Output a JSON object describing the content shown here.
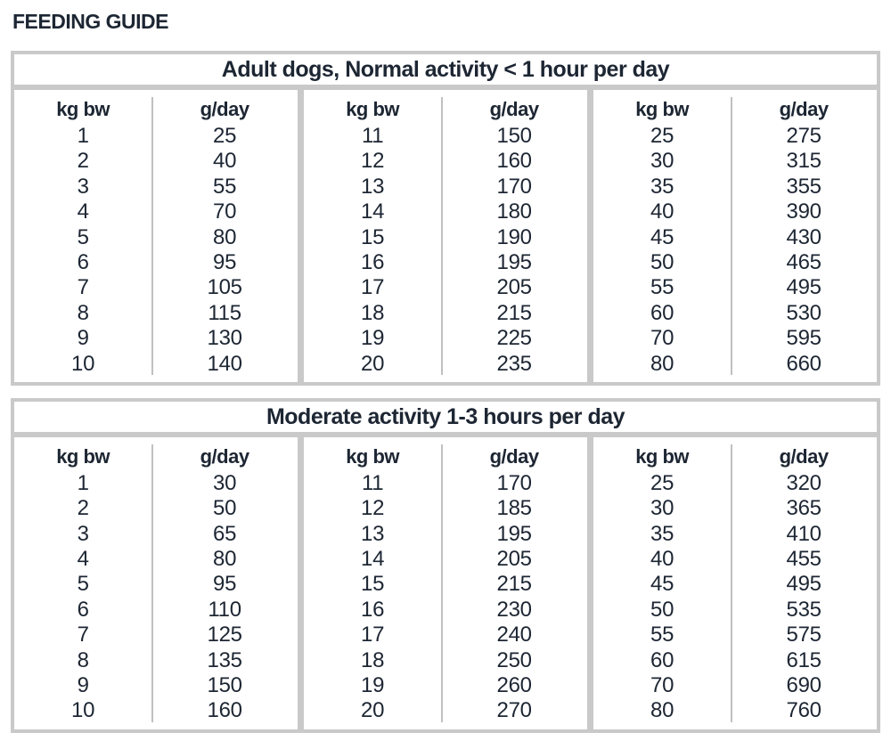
{
  "page_title": "FEEDING GUIDE",
  "colors": {
    "background": "#ffffff",
    "border_gray": "#c9c9c9",
    "divider_gray": "#c0c0c0",
    "text_dark": "#1d2633"
  },
  "tables": [
    {
      "title": "Adult dogs, Normal activity < 1 hour per day",
      "col_headers": {
        "weight": "kg bw",
        "amount": "g/day"
      },
      "blocks": [
        {
          "rows": [
            [
              "1",
              "25"
            ],
            [
              "2",
              "40"
            ],
            [
              "3",
              "55"
            ],
            [
              "4",
              "70"
            ],
            [
              "5",
              "80"
            ],
            [
              "6",
              "95"
            ],
            [
              "7",
              "105"
            ],
            [
              "8",
              "115"
            ],
            [
              "9",
              "130"
            ],
            [
              "10",
              "140"
            ]
          ]
        },
        {
          "rows": [
            [
              "11",
              "150"
            ],
            [
              "12",
              "160"
            ],
            [
              "13",
              "170"
            ],
            [
              "14",
              "180"
            ],
            [
              "15",
              "190"
            ],
            [
              "16",
              "195"
            ],
            [
              "17",
              "205"
            ],
            [
              "18",
              "215"
            ],
            [
              "19",
              "225"
            ],
            [
              "20",
              "235"
            ]
          ]
        },
        {
          "rows": [
            [
              "25",
              "275"
            ],
            [
              "30",
              "315"
            ],
            [
              "35",
              "355"
            ],
            [
              "40",
              "390"
            ],
            [
              "45",
              "430"
            ],
            [
              "50",
              "465"
            ],
            [
              "55",
              "495"
            ],
            [
              "60",
              "530"
            ],
            [
              "70",
              "595"
            ],
            [
              "80",
              "660"
            ]
          ]
        }
      ]
    },
    {
      "title": "Moderate activity 1-3 hours per day",
      "col_headers": {
        "weight": "kg bw",
        "amount": "g/day"
      },
      "blocks": [
        {
          "rows": [
            [
              "1",
              "30"
            ],
            [
              "2",
              "50"
            ],
            [
              "3",
              "65"
            ],
            [
              "4",
              "80"
            ],
            [
              "5",
              "95"
            ],
            [
              "6",
              "110"
            ],
            [
              "7",
              "125"
            ],
            [
              "8",
              "135"
            ],
            [
              "9",
              "150"
            ],
            [
              "10",
              "160"
            ]
          ]
        },
        {
          "rows": [
            [
              "11",
              "170"
            ],
            [
              "12",
              "185"
            ],
            [
              "13",
              "195"
            ],
            [
              "14",
              "205"
            ],
            [
              "15",
              "215"
            ],
            [
              "16",
              "230"
            ],
            [
              "17",
              "240"
            ],
            [
              "18",
              "250"
            ],
            [
              "19",
              "260"
            ],
            [
              "20",
              "270"
            ]
          ]
        },
        {
          "rows": [
            [
              "25",
              "320"
            ],
            [
              "30",
              "365"
            ],
            [
              "35",
              "410"
            ],
            [
              "40",
              "455"
            ],
            [
              "45",
              "495"
            ],
            [
              "50",
              "535"
            ],
            [
              "55",
              "575"
            ],
            [
              "60",
              "615"
            ],
            [
              "70",
              "690"
            ],
            [
              "80",
              "760"
            ]
          ]
        }
      ]
    }
  ]
}
